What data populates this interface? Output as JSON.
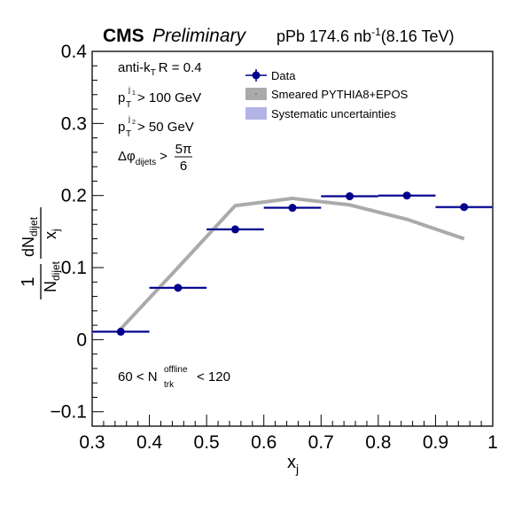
{
  "header": {
    "experiment": "CMS",
    "status": "Preliminary",
    "system": "pPb 174.6 nb",
    "lumi_exp": "-1",
    "energy": "(8.16 TeV)"
  },
  "annotations": {
    "algorithm": "anti-k",
    "algorithm_sub": "T",
    "radius": "R = 0.4",
    "pt1_label": "p",
    "pt1_sup": "j",
    "pt1_supsub": "1",
    "pt1_sub": "T",
    "pt1_cut": "> 100 GeV",
    "pt2_label": "p",
    "pt2_sup": "j",
    "pt2_supsub": "2",
    "pt2_sub": "T",
    "pt2_cut": "> 50 GeV",
    "dphi_label": "Δφ",
    "dphi_sub": "dijets",
    "dphi_cut": ">",
    "dphi_num": "5π",
    "dphi_den": "6",
    "mult_low": "60 < N",
    "mult_sup": "offline",
    "mult_sub": "trk",
    "mult_high": "< 120"
  },
  "chart_data": {
    "type": "scatter",
    "xlabel": "x",
    "xlabel_sub": "j",
    "ylabel": {
      "prefix_num": "1",
      "prefix_den": "N",
      "prefix_den_sub": "dijet",
      "num": "dN",
      "num_sub": "dijet",
      "den": "x",
      "den_sub": "j"
    },
    "xlim": [
      0.3,
      1.0
    ],
    "ylim": [
      -0.12,
      0.4
    ],
    "xticks": [
      "0.3",
      "0.4",
      "0.5",
      "0.6",
      "0.7",
      "0.8",
      "0.9",
      "1"
    ],
    "yticks": [
      "−0.1",
      "0",
      "0.1",
      "0.2",
      "0.3",
      "0.4"
    ],
    "legend_position": "top-center",
    "grid": false,
    "series": [
      {
        "name": "Data",
        "kind": "points",
        "color": "#00008b",
        "x": [
          0.35,
          0.45,
          0.55,
          0.65,
          0.75,
          0.85,
          0.95
        ],
        "x_half_width": 0.05,
        "y": [
          0.011,
          0.072,
          0.153,
          0.183,
          0.199,
          0.2,
          0.184
        ]
      },
      {
        "name": "Smeared PYTHIA8+EPOS",
        "kind": "band",
        "color": "#aaaaaa",
        "x": [
          0.35,
          0.45,
          0.55,
          0.65,
          0.75,
          0.85,
          0.95
        ],
        "y": [
          0.015,
          0.1,
          0.186,
          0.196,
          0.187,
          0.167,
          0.14
        ]
      },
      {
        "name": "Systematic uncertainties",
        "kind": "boxes",
        "color": "#b3b3e6"
      }
    ]
  }
}
